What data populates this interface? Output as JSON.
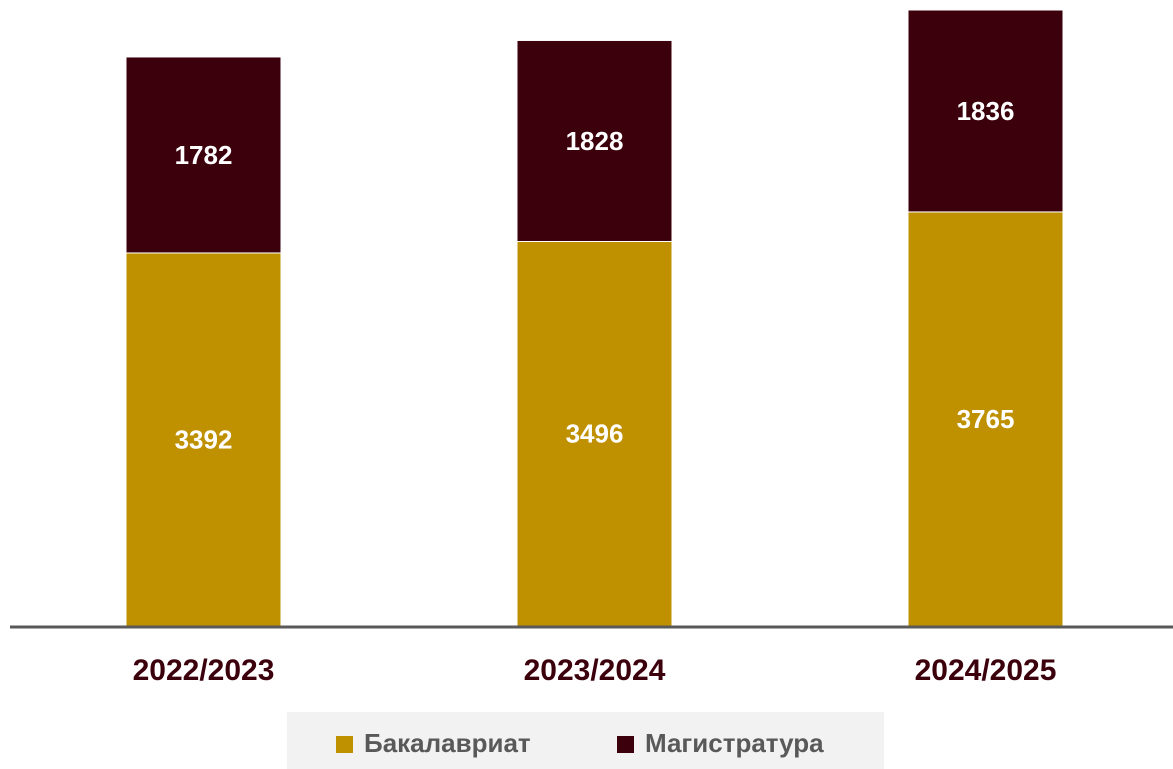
{
  "chart_data": {
    "type": "stacked_bar",
    "categories": [
      "2022/2023",
      "2023/2024",
      "2024/2025"
    ],
    "series": [
      {
        "name": "Бакалавриат",
        "color": "#bf9000",
        "values": [
          3392,
          3496,
          3765
        ]
      },
      {
        "name": "Магистратура",
        "color": "#3b000c",
        "values": [
          1782,
          1828,
          1836
        ]
      }
    ],
    "legend": "bottom"
  }
}
